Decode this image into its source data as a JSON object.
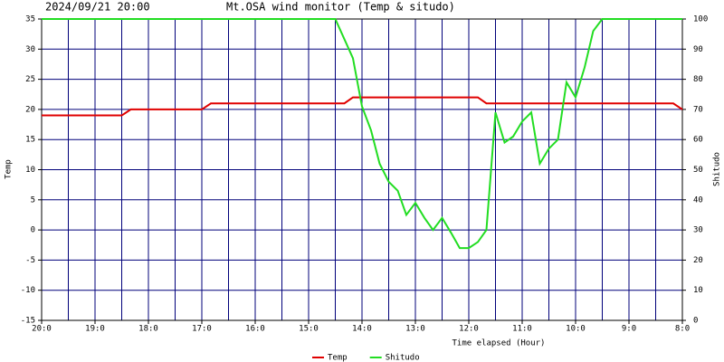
{
  "chart_data": {
    "type": "line",
    "title": "2024/09/21 20:00",
    "subtitle": "Mt.OSA wind monitor (Temp & situdo)",
    "x_label": "Time elapsed (Hour)",
    "y_label": "Temp",
    "y2_label": "Shitudo",
    "xlim": [
      0,
      12
    ],
    "xticks": [
      {
        "value": 0,
        "label": "20:0"
      },
      {
        "value": 1,
        "label": "19:0"
      },
      {
        "value": 2,
        "label": "18:0"
      },
      {
        "value": 3,
        "label": "17:0"
      },
      {
        "value": 4,
        "label": "16:0"
      },
      {
        "value": 5,
        "label": "15:0"
      },
      {
        "value": 6,
        "label": "14:0"
      },
      {
        "value": 7,
        "label": "13:0"
      },
      {
        "value": 8,
        "label": "12:0"
      },
      {
        "value": 9,
        "label": "11:0"
      },
      {
        "value": 10,
        "label": "10:0"
      },
      {
        "value": 11,
        "label": "9:0"
      },
      {
        "value": 12,
        "label": "8:0"
      }
    ],
    "xgrid_minor": [
      0.5,
      1.5,
      2.5,
      3.5,
      4.5,
      5.5,
      6.5,
      7.5,
      8.5,
      9.5,
      10.5,
      11.5
    ],
    "ylim": [
      -15,
      35
    ],
    "yticks": [
      -15,
      -10,
      -5,
      0,
      5,
      10,
      15,
      20,
      25,
      30,
      35
    ],
    "y2lim": [
      0,
      100
    ],
    "y2ticks": [
      0,
      10,
      20,
      30,
      40,
      50,
      60,
      70,
      80,
      90,
      100
    ],
    "grid": true,
    "legend": "bottom",
    "series": [
      {
        "name": "Temp",
        "color": "#e00000",
        "x": [
          0,
          1.5,
          1.67,
          3.0,
          3.17,
          5.67,
          5.83,
          8.17,
          8.33,
          11.83,
          12
        ],
        "values": [
          19,
          19,
          20,
          20,
          21,
          21,
          22,
          22,
          21,
          21,
          20
        ]
      },
      {
        "name": "Shitudo",
        "color": "#22dd22",
        "axis": "y2",
        "x": [
          0,
          5.5,
          5.83,
          6.0,
          6.17,
          6.33,
          6.5,
          6.67,
          6.83,
          7.0,
          7.17,
          7.33,
          7.5,
          7.67,
          7.83,
          8.0,
          8.17,
          8.33,
          8.5,
          8.67,
          8.83,
          9.0,
          9.17,
          9.33,
          9.5,
          9.67,
          9.83,
          10.0,
          10.17,
          10.33,
          10.5,
          12
        ],
        "values": [
          100,
          100,
          87,
          71,
          63,
          52,
          46,
          43,
          35,
          39,
          34,
          30,
          34,
          29,
          24,
          24,
          26,
          30,
          69,
          59,
          61,
          66,
          69,
          52,
          57,
          60,
          79,
          74,
          84,
          96,
          100,
          100
        ]
      }
    ]
  }
}
